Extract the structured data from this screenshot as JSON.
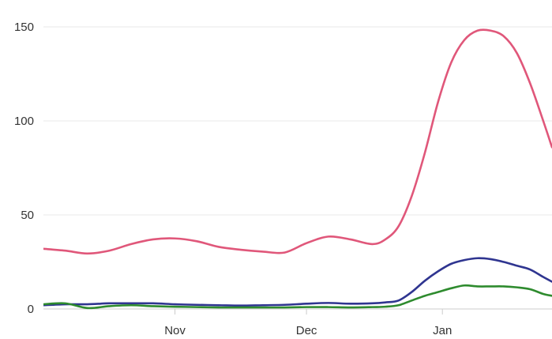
{
  "chart_data": {
    "type": "line",
    "title": "",
    "xlabel": "",
    "ylabel": "",
    "x_tick_labels": [
      "Nov",
      "Dec",
      "Jan"
    ],
    "x_ticks": [
      "2021-11-01",
      "2021-12-01",
      "2022-01-01"
    ],
    "x_range": [
      "2021-10-02",
      "2022-01-26"
    ],
    "y_tick_labels": [
      "0",
      "50",
      "100",
      "150"
    ],
    "y_ticks": [
      0,
      50,
      100,
      150
    ],
    "ylim": [
      0,
      150
    ],
    "grid": "horizontal",
    "legend": "none",
    "x": [
      "2021-10-02",
      "2021-10-07",
      "2021-10-12",
      "2021-10-17",
      "2021-10-22",
      "2021-10-27",
      "2021-11-01",
      "2021-11-06",
      "2021-11-11",
      "2021-11-16",
      "2021-11-21",
      "2021-11-26",
      "2021-12-01",
      "2021-12-06",
      "2021-12-11",
      "2021-12-16",
      "2021-12-19",
      "2021-12-22",
      "2021-12-25",
      "2021-12-28",
      "2021-12-31",
      "2022-01-03",
      "2022-01-06",
      "2022-01-09",
      "2022-01-12",
      "2022-01-15",
      "2022-01-18",
      "2022-01-21",
      "2022-01-24",
      "2022-01-26"
    ],
    "series": [
      {
        "color": "#e0577a",
        "values": [
          32,
          31,
          29.5,
          31,
          34.5,
          37,
          37.5,
          36,
          33,
          31.5,
          30.5,
          30,
          35,
          38.5,
          37,
          34.5,
          37,
          44,
          60,
          83,
          110,
          131,
          143,
          148,
          148,
          145,
          136,
          120,
          100,
          86
        ]
      },
      {
        "color": "#2f3590",
        "values": [
          2,
          2.5,
          2.5,
          3,
          3,
          3,
          2.5,
          2.2,
          2,
          1.8,
          2,
          2.2,
          2.8,
          3.2,
          2.8,
          3,
          3.5,
          4.5,
          9,
          15,
          20,
          24,
          26,
          27,
          26.5,
          25,
          23,
          21,
          17,
          14.5
        ]
      },
      {
        "color": "#2e8b2e",
        "values": [
          2.5,
          3,
          0.5,
          1.5,
          2,
          1.5,
          1.2,
          1,
          0.8,
          0.8,
          0.8,
          0.8,
          1,
          1,
          0.8,
          1,
          1.2,
          2,
          4.5,
          7,
          9,
          11,
          12.5,
          12,
          12,
          12,
          11.5,
          10.5,
          8,
          7
        ]
      }
    ]
  }
}
